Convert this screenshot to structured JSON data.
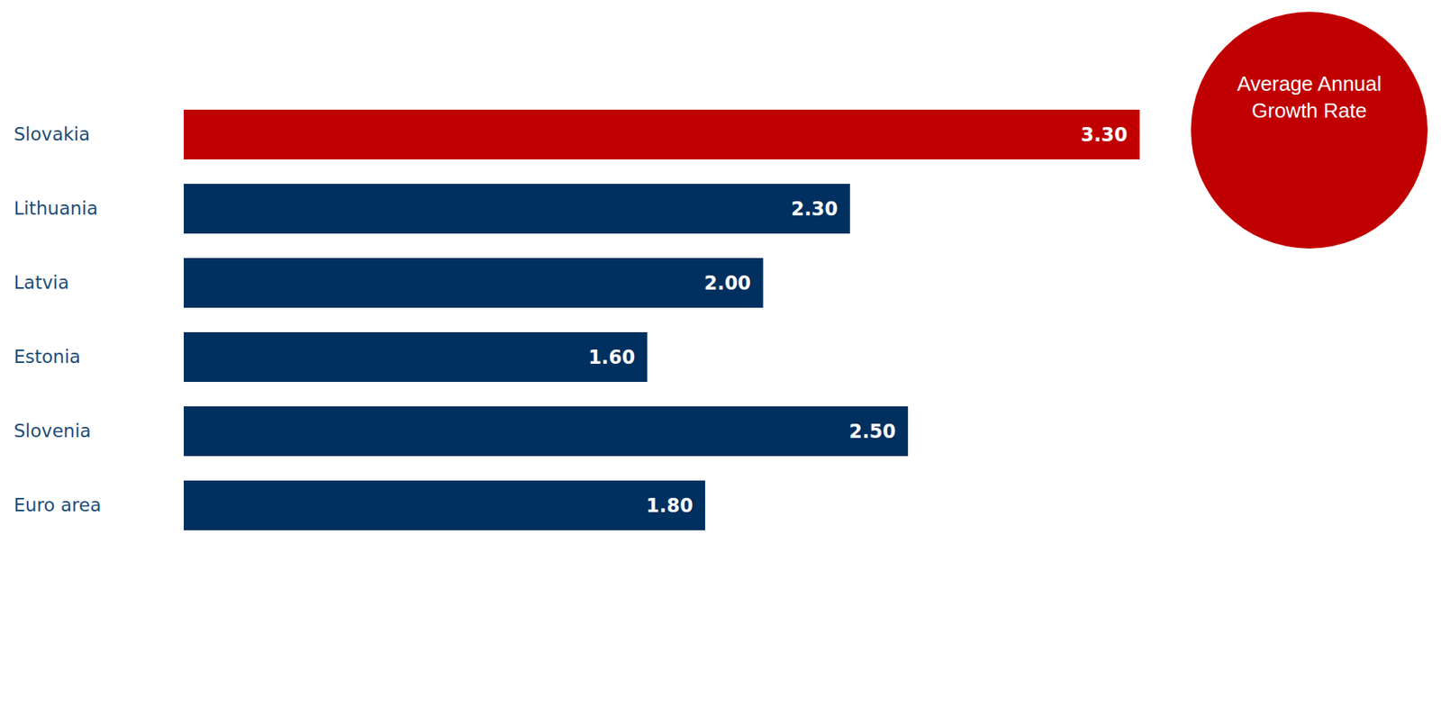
{
  "chart_data": {
    "type": "bar",
    "orientation": "horizontal",
    "title": "Average Annual Growth Rate",
    "categories": [
      "Slovakia",
      "Lithuania",
      "Latvia",
      "Estonia",
      "Slovenia",
      "Euro area"
    ],
    "values": [
      3.3,
      2.3,
      2.0,
      1.6,
      2.5,
      1.8
    ],
    "value_labels": [
      "3.30",
      "2.30",
      "2.00",
      "1.60",
      "2.50",
      "1.80"
    ],
    "colors": [
      "#c00000",
      "#00305f",
      "#00305f",
      "#00305f",
      "#00305f",
      "#00305f"
    ],
    "xlim": [
      0,
      3.3
    ],
    "grid": false,
    "data_labels": true,
    "tick_labels": "y"
  }
}
